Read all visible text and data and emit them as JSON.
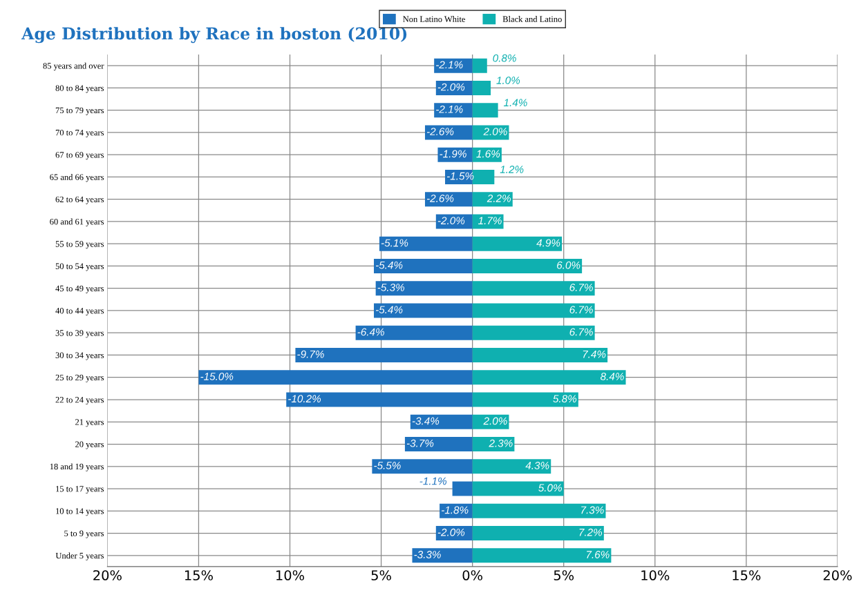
{
  "chart_data": {
    "type": "bar",
    "orientation": "horizontal",
    "title": "Age Distribution by Race in boston (2010)",
    "categories": [
      "85 years and over",
      "80 to 84 years",
      "75 to 79 years",
      "70 to 74 years",
      "67 to 69 years",
      "65 and 66 years",
      "62 to 64 years",
      "60 and 61 years",
      "55 to 59 years",
      "50 to 54 years",
      "45 to 49 years",
      "40 to 44 years",
      "35 to 39 years",
      "30 to 34 years",
      "25 to 29 years",
      "22 to 24 years",
      "21 years",
      "20 years",
      "18 and 19 years",
      "15 to 17 years",
      "10 to 14 years",
      "5 to 9 years",
      "Under 5 years"
    ],
    "series": [
      {
        "name": "Non Latino White",
        "color": "#1f72be",
        "values": [
          -2.1,
          -2.0,
          -2.1,
          -2.6,
          -1.9,
          -1.5,
          -2.6,
          -2.0,
          -5.1,
          -5.4,
          -5.3,
          -5.4,
          -6.4,
          -9.7,
          -15.0,
          -10.2,
          -3.4,
          -3.7,
          -5.5,
          -1.1,
          -1.8,
          -2.0,
          -3.3
        ],
        "value_labels": [
          "-2.1%",
          "-2.0%",
          "-2.1%",
          "-2.6%",
          "-1.9%",
          "-1.5%",
          "-2.6%",
          "-2.0%",
          "-5.1%",
          "-5.4%",
          "-5.3%",
          "-5.4%",
          "-6.4%",
          "-9.7%",
          "-15.0%",
          "-10.2%",
          "-3.4%",
          "-3.7%",
          "-5.5%",
          "-1.1%",
          "-1.8%",
          "-2.0%",
          "-3.3%"
        ]
      },
      {
        "name": "Black and Latino",
        "color": "#0fb0b0",
        "values": [
          0.8,
          1.0,
          1.4,
          2.0,
          1.6,
          1.2,
          2.2,
          1.7,
          4.9,
          6.0,
          6.7,
          6.7,
          6.7,
          7.4,
          8.4,
          5.8,
          2.0,
          2.3,
          4.3,
          5.0,
          7.3,
          7.2,
          7.6
        ],
        "value_labels": [
          "0.8%",
          "1.0%",
          "1.4%",
          "2.0%",
          "1.6%",
          "1.2%",
          "2.2%",
          "1.7%",
          "4.9%",
          "6.0%",
          "6.7%",
          "6.7%",
          "6.7%",
          "7.4%",
          "8.4%",
          "5.8%",
          "2.0%",
          "2.3%",
          "4.3%",
          "5.0%",
          "7.3%",
          "7.2%",
          "7.6%"
        ]
      }
    ],
    "xlim": [
      -20,
      20
    ],
    "xticks": [
      {
        "value": -20,
        "label": "20%"
      },
      {
        "value": -15,
        "label": "15%"
      },
      {
        "value": -10,
        "label": "10%"
      },
      {
        "value": -5,
        "label": "5%"
      },
      {
        "value": 0,
        "label": "0%"
      },
      {
        "value": 5,
        "label": "5%"
      },
      {
        "value": 10,
        "label": "10%"
      },
      {
        "value": 15,
        "label": "15%"
      },
      {
        "value": 20,
        "label": "20%"
      }
    ],
    "grid": true,
    "legend": "top",
    "stacked": true
  }
}
